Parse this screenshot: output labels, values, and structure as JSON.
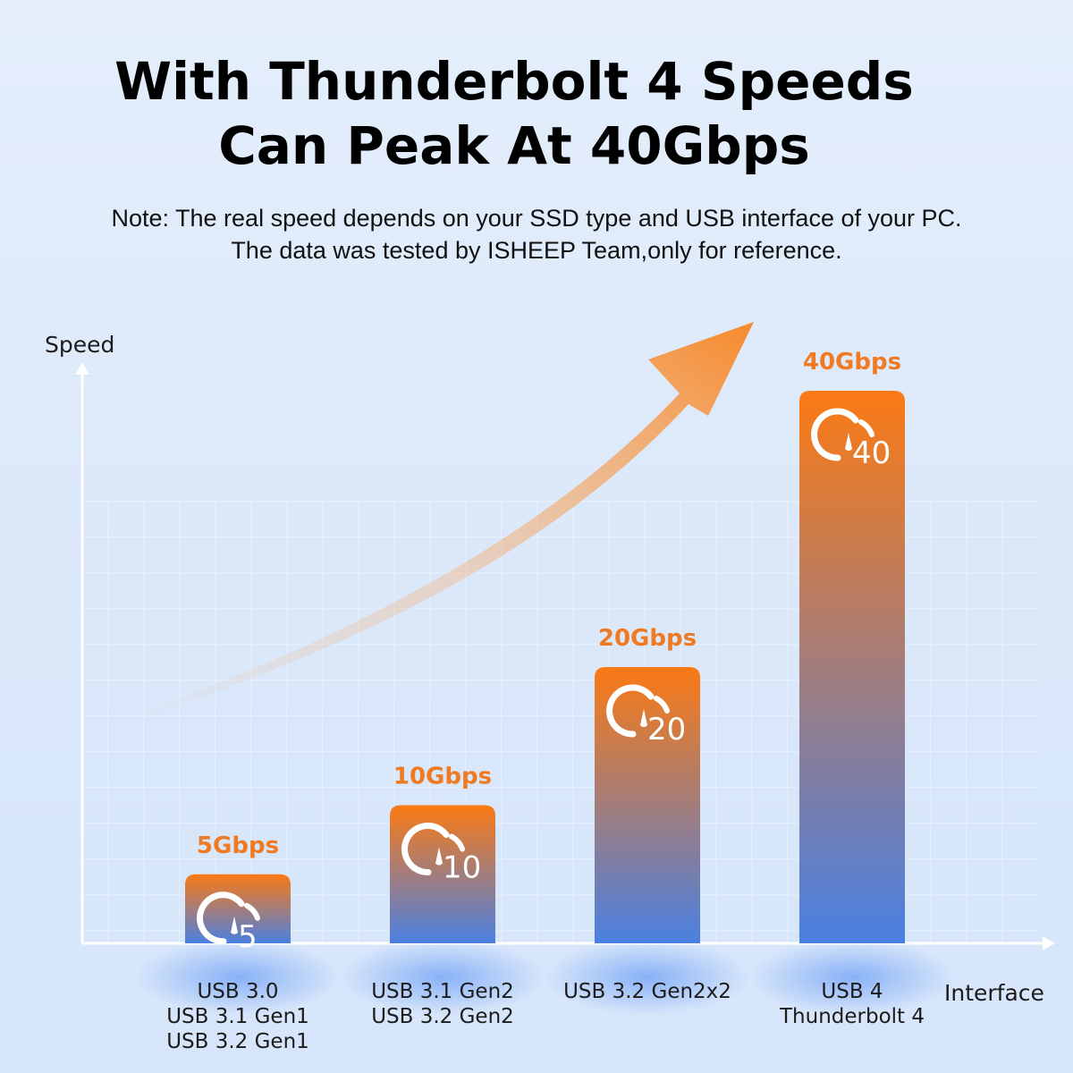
{
  "header": {
    "title_line1": "With Thunderbolt 4 Speeds",
    "title_line2": "Can Peak At 40Gbps",
    "note_line1": "Note: The real speed depends on your SSD type and USB interface of your PC.",
    "note_line2": "The data was tested by  ISHEEP Team,only for reference."
  },
  "colors": {
    "bar_top": "#fb7a14",
    "bar_bottom": "#4a80e2",
    "value_label": "#f07a22",
    "axis": "#ffffff",
    "arrow": "#f78a2c"
  },
  "chart_data": {
    "type": "bar",
    "ylabel": "Speed",
    "xlabel": "Interface",
    "grid": true,
    "ylim": [
      0,
      40
    ],
    "categories": [
      [
        "USB 3.0",
        "USB 3.1 Gen1",
        "USB 3.2 Gen1"
      ],
      [
        "USB 3.1 Gen2",
        "USB 3.2 Gen2"
      ],
      [
        "USB 3.2 Gen2x2"
      ],
      [
        "USB 4",
        "Thunderbolt 4"
      ]
    ],
    "values": [
      5,
      10,
      20,
      40
    ],
    "value_labels": [
      "5Gbps",
      "10Gbps",
      "20Gbps",
      "40Gbps"
    ],
    "icon_numbers": [
      "5",
      "10",
      "20",
      "40"
    ],
    "icon": "speedometer-icon"
  }
}
